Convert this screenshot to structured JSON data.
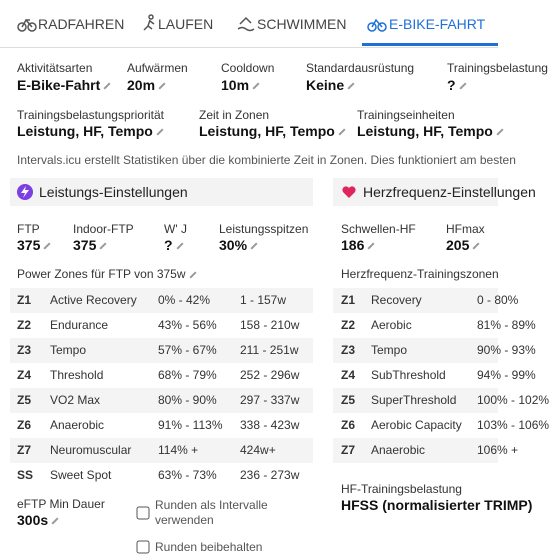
{
  "tabs": [
    "RADFAHREN",
    "LAUFEN",
    "SCHWIMMEN",
    "E-BIKE-FAHRT"
  ],
  "row1": [
    {
      "label": "Aktivitätsarten",
      "value": "E-Bike-Fahrt"
    },
    {
      "label": "Aufwärmen",
      "value": "20m"
    },
    {
      "label": "Cooldown",
      "value": "10m"
    },
    {
      "label": "Standardausrüstung",
      "value": "Keine"
    },
    {
      "label": "Trainingsbelastung",
      "value": "?"
    }
  ],
  "row2": [
    {
      "label": "Trainingsbelastungspriorität",
      "value": "Leistung, HF, Tempo"
    },
    {
      "label": "Zeit in Zonen",
      "value": "Leistung, HF, Tempo"
    },
    {
      "label": "Trainingseinheiten",
      "value": "Leistung, HF, Tempo"
    }
  ],
  "info": "Intervals.icu erstellt Statistiken über die kombinierte Zeit in Zonen. Dies funktioniert am besten",
  "power": {
    "title": "Leistungs-Einstellungen",
    "fields": [
      {
        "label": "FTP",
        "value": "375"
      },
      {
        "label": "Indoor-FTP",
        "value": "375"
      },
      {
        "label": "W' J",
        "value": "?"
      },
      {
        "label": "Leistungsspitzen",
        "value": "30%"
      }
    ],
    "zones_title": "Power Zones für FTP von 375w",
    "zones": [
      [
        "Z1",
        "Active Recovery",
        "0% - 42%",
        "1 - 157w"
      ],
      [
        "Z2",
        "Endurance",
        "43% - 56%",
        "158 - 210w"
      ],
      [
        "Z3",
        "Tempo",
        "57% - 67%",
        "211 - 251w"
      ],
      [
        "Z4",
        "Threshold",
        "68% - 79%",
        "252 - 296w"
      ],
      [
        "Z5",
        "VO2 Max",
        "80% - 90%",
        "297 - 337w"
      ],
      [
        "Z6",
        "Anaerobic",
        "91% - 113%",
        "338 - 423w"
      ],
      [
        "Z7",
        "Neuromuscular",
        "114% +",
        "424w+"
      ],
      [
        "SS",
        "Sweet Spot",
        "63% - 73%",
        "236 - 273w"
      ]
    ],
    "eftp": {
      "label": "eFTP Min Dauer",
      "value": "300s"
    },
    "options": [
      [
        "Runden als Intervalle",
        "verwenden"
      ],
      [
        "Runden beibehalten"
      ]
    ]
  },
  "hr": {
    "title": "Herzfrequenz-Einstellungen",
    "fields": [
      {
        "label": "Schwellen-HF",
        "value": "186"
      },
      {
        "label": "HFmax",
        "value": "205"
      }
    ],
    "zones_title": "Herzfrequenz-Trainingszonen",
    "zones": [
      [
        "Z1",
        "Recovery",
        "0 - 80%"
      ],
      [
        "Z2",
        "Aerobic",
        "81% - 89%"
      ],
      [
        "Z3",
        "Tempo",
        "90% - 93%"
      ],
      [
        "Z4",
        "SubThreshold",
        "94% - 99%"
      ],
      [
        "Z5",
        "SuperThreshold",
        "100% - 102%"
      ],
      [
        "Z6",
        "Aerobic Capacity",
        "103% - 106%"
      ],
      [
        "Z7",
        "Anaerobic",
        "106% +"
      ]
    ],
    "load": {
      "label": "HF-Trainingsbelastung",
      "value": "HFSS (normalisierter TRIMP)"
    }
  }
}
